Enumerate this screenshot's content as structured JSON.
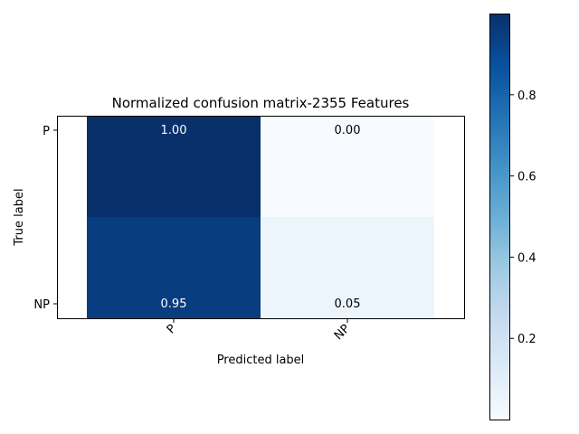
{
  "chart_data": {
    "type": "heatmap",
    "title": "Normalized confusion matrix-2355 Features",
    "xlabel": "Predicted label",
    "ylabel": "True label",
    "x_categories": [
      "P",
      "NP"
    ],
    "y_categories": [
      "P",
      "NP"
    ],
    "values": [
      [
        1.0,
        0.0
      ],
      [
        0.95,
        0.05
      ]
    ],
    "cell_labels": [
      [
        "1.00",
        "0.00"
      ],
      [
        "0.95",
        "0.05"
      ]
    ],
    "colormap": "Blues",
    "colorbar": {
      "range": [
        0,
        1
      ],
      "ticks": [
        0.2,
        0.4,
        0.6,
        0.8
      ],
      "tick_labels": [
        "0.2",
        "0.4",
        "0.6",
        "0.8"
      ]
    },
    "grid": false
  },
  "colors": {
    "blues_low": "#f7fbff",
    "blues_high": "#08306b",
    "text_on_dark": "#ffffff",
    "text_on_light": "#000000"
  }
}
